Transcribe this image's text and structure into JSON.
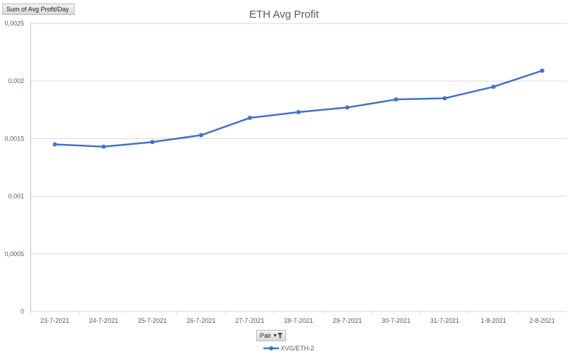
{
  "field_button": {
    "label": "Sum of Avg Profit/Day"
  },
  "pair_filter": {
    "label": "Pair"
  },
  "colors": {
    "series": "#4472C4",
    "gridline": "#d9d9d9",
    "axis_text": "#595959"
  },
  "chart_data": {
    "type": "line",
    "title": "ETH Avg Profit",
    "xlabel": "",
    "ylabel": "",
    "categories": [
      "23-7-2021",
      "24-7-2021",
      "25-7-2021",
      "26-7-2021",
      "27-7-2021",
      "28-7-2021",
      "29-7-2021",
      "30-7-2021",
      "31-7-2021",
      "1-8-2021",
      "2-8-2021"
    ],
    "series": [
      {
        "name": "XVG/ETH-2",
        "values": [
          0.00145,
          0.00143,
          0.00147,
          0.00153,
          0.00168,
          0.00173,
          0.00177,
          0.00184,
          0.00185,
          0.00195,
          0.00209
        ]
      }
    ],
    "ylim": [
      0,
      0.0025
    ],
    "yticks": [
      0,
      0.0005,
      0.001,
      0.0015,
      0.002,
      0.0025
    ],
    "ytick_labels": [
      "0",
      "0,0005",
      "0,001",
      "0,0015",
      "0,002",
      "0,0025"
    ],
    "grid": true,
    "legend_position": "bottom"
  }
}
